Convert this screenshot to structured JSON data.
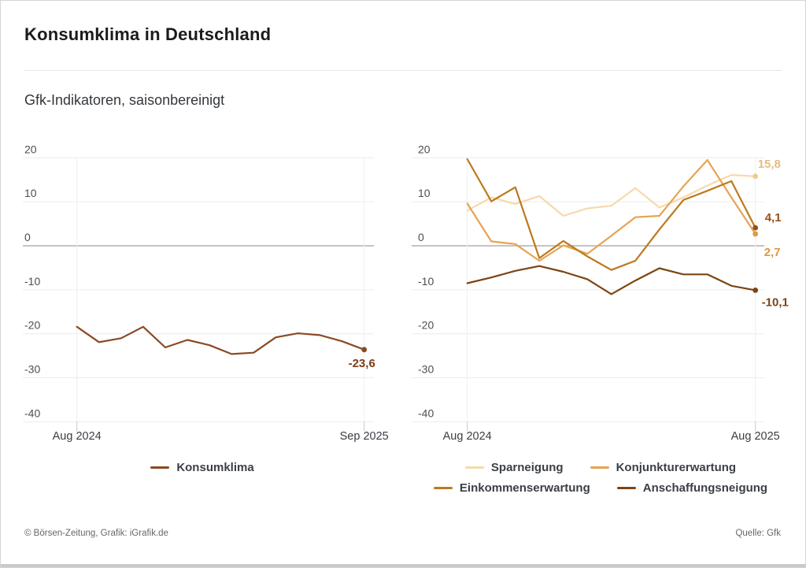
{
  "header": {
    "title": "Konsumklima in Deutschland",
    "subtitle": "Gfk-Indikatoren, saisonbereinigt"
  },
  "footer": {
    "left": "© Börsen-Zeitung, Grafik: iGrafik.de",
    "right": "Quelle: Gfk"
  },
  "colors": {
    "grid_line": "#ececec",
    "zero_line": "#b0b0b0",
    "edge_line": "#efefef",
    "tick": "#c8c8c8"
  },
  "chart_data": [
    {
      "type": "line",
      "name": "konsumklima-chart",
      "x_start_label": "Aug 2024",
      "x_end_label": "Sep 2025",
      "y_ticks": [
        20,
        10,
        0,
        -10,
        -20,
        -30,
        -40
      ],
      "ylim": [
        -40,
        20
      ],
      "grid": true,
      "series": [
        {
          "name": "Konsumklima",
          "color": "#8a4a23",
          "dot_color": "#8a4a23",
          "end_label": "-23,6",
          "end_label_color": "#7d3c14",
          "values": [
            -18.4,
            -21.9,
            -21.0,
            -18.4,
            -23.1,
            -21.4,
            -22.6,
            -24.6,
            -24.3,
            -20.8,
            -19.9,
            -20.3,
            -21.7,
            -23.6
          ]
        }
      ]
    },
    {
      "type": "line",
      "name": "gfk-indikatoren-chart",
      "x_start_label": "Aug 2024",
      "x_end_label": "Aug 2025",
      "y_ticks": [
        20,
        10,
        0,
        -10,
        -20,
        -30,
        -40
      ],
      "ylim": [
        -40,
        20
      ],
      "grid": true,
      "series": [
        {
          "name": "Sparneigung",
          "color": "#f6d9ab",
          "dot_color": "#eec893",
          "end_label": "15,8",
          "end_label_color": "#e8bd80",
          "values": [
            8.0,
            11.0,
            9.5,
            11.3,
            6.8,
            8.5,
            9.1,
            13.1,
            8.7,
            11.0,
            13.7,
            16.1,
            15.8
          ]
        },
        {
          "name": "Konjunkturerwartung",
          "color": "#e8a352",
          "dot_color": "#e19a43",
          "end_label": "2,7",
          "end_label_color": "#dd9840",
          "values": [
            9.6,
            1.0,
            0.4,
            -3.4,
            0.1,
            -1.8,
            2.3,
            6.5,
            6.8,
            13.5,
            19.5,
            11.0,
            2.7
          ]
        },
        {
          "name": "Einkommenserwartung",
          "color": "#bc791d",
          "dot_color": "#94511c",
          "end_label": "4,1",
          "end_label_color": "#94511c",
          "values": [
            19.7,
            10.1,
            13.3,
            -2.8,
            1.1,
            -2.4,
            -5.5,
            -3.4,
            3.7,
            10.4,
            12.5,
            14.7,
            4.1
          ]
        },
        {
          "name": "Anschaffungsneigung",
          "color": "#7c4414",
          "dot_color": "#7c4414",
          "end_label": "-10,1",
          "end_label_color": "#7c4414",
          "values": [
            -8.5,
            -7.2,
            -5.7,
            -4.6,
            -5.9,
            -7.6,
            -11.0,
            -7.9,
            -5.1,
            -6.5,
            -6.5,
            -9.1,
            -10.1
          ]
        }
      ]
    }
  ]
}
